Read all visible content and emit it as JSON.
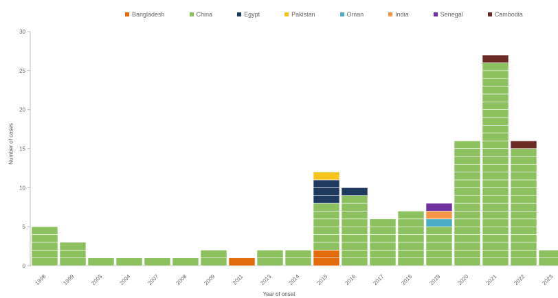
{
  "chart_data": {
    "type": "bar",
    "stacked": true,
    "xlabel": "Year of onset",
    "ylabel": "Number of cases",
    "ylim": [
      0,
      30
    ],
    "yticks": [
      0,
      5,
      10,
      15,
      20,
      25,
      30
    ],
    "grid": false,
    "legend_position": "top",
    "categories": [
      "1998",
      "1999",
      "2003",
      "2004",
      "2007",
      "2008",
      "2009",
      "2011",
      "2013",
      "2014",
      "2015",
      "2016",
      "2017",
      "2018",
      "2019",
      "2020",
      "2021",
      "2022",
      "2023"
    ],
    "series": [
      {
        "name": "Bangladesh",
        "color": "#e36c0a",
        "values": [
          0,
          0,
          0,
          0,
          0,
          0,
          0,
          1,
          0,
          0,
          2,
          0,
          0,
          0,
          0,
          0,
          0,
          0,
          0
        ]
      },
      {
        "name": "China",
        "color": "#8dc05e",
        "values": [
          5,
          3,
          1,
          1,
          1,
          1,
          2,
          0,
          2,
          2,
          6,
          9,
          6,
          7,
          5,
          16,
          26,
          15,
          2
        ]
      },
      {
        "name": "Egypt",
        "color": "#1f3a5f",
        "values": [
          0,
          0,
          0,
          0,
          0,
          0,
          0,
          0,
          0,
          0,
          3,
          1,
          0,
          0,
          0,
          0,
          0,
          0,
          0
        ]
      },
      {
        "name": "Pakistan",
        "color": "#f6c21c",
        "values": [
          0,
          0,
          0,
          0,
          0,
          0,
          0,
          0,
          0,
          0,
          1,
          0,
          0,
          0,
          0,
          0,
          0,
          0,
          0
        ]
      },
      {
        "name": "Oman",
        "color": "#4bacc6",
        "values": [
          0,
          0,
          0,
          0,
          0,
          0,
          0,
          0,
          0,
          0,
          0,
          0,
          0,
          0,
          1,
          0,
          0,
          0,
          0
        ]
      },
      {
        "name": "India",
        "color": "#f79646",
        "values": [
          0,
          0,
          0,
          0,
          0,
          0,
          0,
          0,
          0,
          0,
          0,
          0,
          0,
          0,
          1,
          0,
          0,
          0,
          0
        ]
      },
      {
        "name": "Senegal",
        "color": "#7030a0",
        "values": [
          0,
          0,
          0,
          0,
          0,
          0,
          0,
          0,
          0,
          0,
          0,
          0,
          0,
          0,
          1,
          0,
          0,
          0,
          0
        ]
      },
      {
        "name": "Cambodia",
        "color": "#6b2a24",
        "values": [
          0,
          0,
          0,
          0,
          0,
          0,
          0,
          0,
          0,
          0,
          0,
          0,
          0,
          0,
          0,
          0,
          1,
          1,
          0
        ]
      }
    ]
  }
}
